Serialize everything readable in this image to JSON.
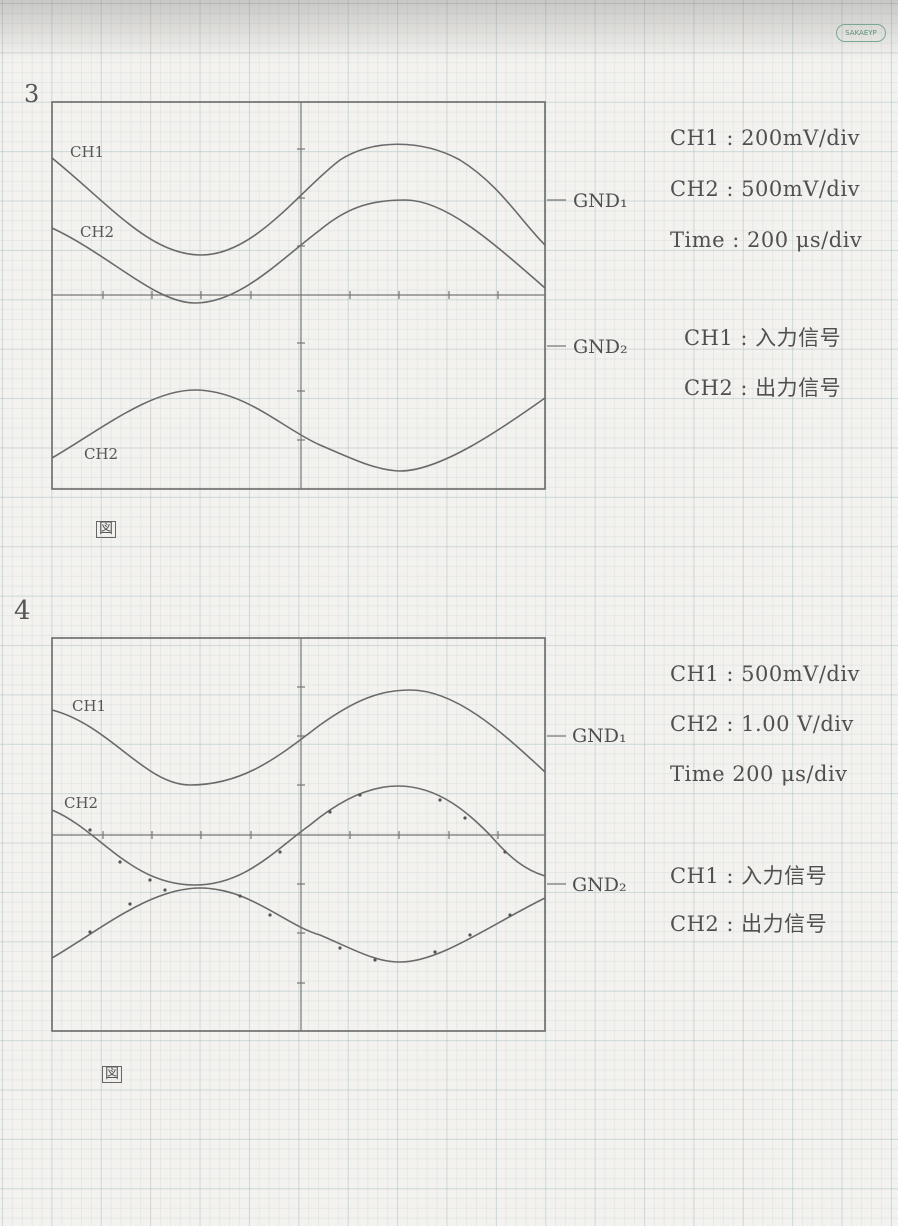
{
  "brand": "SAKAEYP",
  "graphs": [
    {
      "number": "3",
      "ch1_label": "CH1",
      "ch2_label_top": "CH2",
      "ch2_label_bottom": "CH2",
      "gnd1": "GND₁",
      "gnd2": "GND₂",
      "figure_mark": "図",
      "notes": [
        "CH1 : 200mV/div",
        "CH2 : 500mV/div",
        "Time : 200 μs/div"
      ],
      "notes2": [
        "CH1 : 入力信号",
        "CH2 : 出力信号"
      ]
    },
    {
      "number": "4",
      "ch1_label": "CH1",
      "ch2_label_top": "CH2",
      "gnd1": "GND₁",
      "gnd2": "GND₂",
      "figure_mark": "図",
      "notes": [
        "CH1 : 500mV/div",
        "CH2 : 1.00 V/div",
        "Time 200 μs/div"
      ],
      "notes2": [
        "CH1 : 入力信号",
        "CH2 : 出力信号"
      ]
    }
  ]
}
